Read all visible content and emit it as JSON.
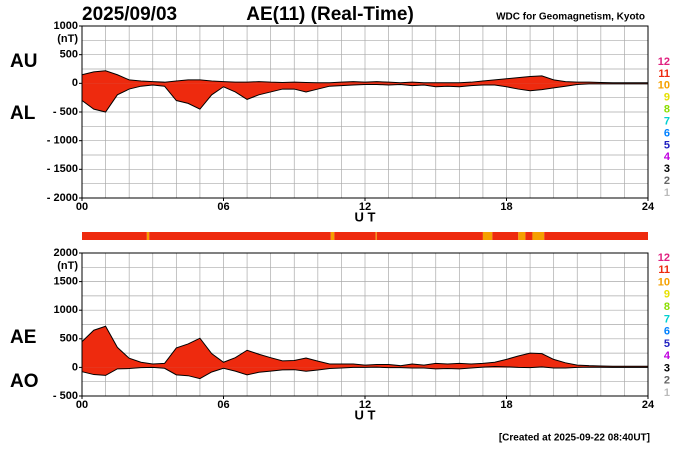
{
  "header": {
    "date": "2025/09/03",
    "title": "AE(11) (Real-Time)",
    "source": "WDC for Geomagnetism, Kyoto"
  },
  "footer": "[Created at 2025-09-22 08:40UT]",
  "station_legend": [
    {
      "label": "12",
      "color": "#e0207f"
    },
    {
      "label": "11",
      "color": "#ee2a0e"
    },
    {
      "label": "10",
      "color": "#f5a000"
    },
    {
      "label": "9",
      "color": "#e6e000"
    },
    {
      "label": "8",
      "color": "#8ade00"
    },
    {
      "label": "7",
      "color": "#00d0d0"
    },
    {
      "label": "6",
      "color": "#0080ff"
    },
    {
      "label": "5",
      "color": "#2020c0"
    },
    {
      "label": "4",
      "color": "#c000e0"
    },
    {
      "label": "3",
      "color": "#000000"
    },
    {
      "label": "2",
      "color": "#666666"
    },
    {
      "label": "1",
      "color": "#bbbbbb"
    }
  ],
  "station_bar": [
    {
      "start": 0,
      "end": 2.75,
      "count": 11
    },
    {
      "start": 2.75,
      "end": 2.85,
      "count": 10
    },
    {
      "start": 2.85,
      "end": 10.55,
      "count": 11
    },
    {
      "start": 10.55,
      "end": 10.7,
      "count": 10
    },
    {
      "start": 10.7,
      "end": 12.45,
      "count": 11
    },
    {
      "start": 12.45,
      "end": 12.5,
      "count": 10
    },
    {
      "start": 12.5,
      "end": 17,
      "count": 11
    },
    {
      "start": 17,
      "end": 17.4,
      "count": 10
    },
    {
      "start": 17.4,
      "end": 18.5,
      "count": 11
    },
    {
      "start": 18.5,
      "end": 18.8,
      "count": 10
    },
    {
      "start": 18.8,
      "end": 19.1,
      "count": 11
    },
    {
      "start": 19.1,
      "end": 19.6,
      "count": 10
    },
    {
      "start": 19.6,
      "end": 24,
      "count": 11
    }
  ],
  "chart_data": [
    {
      "type": "area",
      "unit": "(nT)",
      "xlabel": "U T",
      "x": [
        0,
        0.5,
        1,
        1.5,
        2,
        2.5,
        3,
        3.5,
        4,
        4.5,
        5,
        5.5,
        6,
        6.5,
        7,
        7.5,
        8,
        8.5,
        9,
        9.5,
        10,
        10.5,
        11,
        11.5,
        12,
        12.5,
        13,
        13.5,
        14,
        14.5,
        15,
        15.5,
        16,
        16.5,
        17,
        17.5,
        18,
        18.5,
        19,
        19.5,
        20,
        20.5,
        21,
        21.5,
        22,
        22.5,
        23,
        23.5,
        24
      ],
      "series": [
        {
          "name": "AU",
          "color": "#ee2a0e",
          "values": [
            150,
            200,
            220,
            150,
            60,
            40,
            30,
            20,
            40,
            60,
            60,
            40,
            30,
            20,
            20,
            30,
            20,
            15,
            20,
            15,
            10,
            10,
            20,
            30,
            20,
            30,
            20,
            10,
            20,
            10,
            10,
            10,
            10,
            20,
            40,
            60,
            80,
            100,
            120,
            130,
            60,
            30,
            20,
            20,
            15,
            10,
            10,
            10,
            10
          ]
        },
        {
          "name": "AL",
          "color": "#ee2a0e",
          "values": [
            -300,
            -450,
            -500,
            -200,
            -100,
            -50,
            -30,
            -50,
            -300,
            -350,
            -450,
            -200,
            -60,
            -150,
            -280,
            -200,
            -150,
            -100,
            -100,
            -150,
            -100,
            -50,
            -40,
            -30,
            -20,
            -20,
            -30,
            -20,
            -40,
            -30,
            -60,
            -50,
            -60,
            -40,
            -30,
            -30,
            -60,
            -100,
            -130,
            -110,
            -80,
            -50,
            -20,
            -10,
            -10,
            -10,
            -10,
            -10,
            -10
          ]
        }
      ],
      "xlim": [
        0,
        24
      ],
      "xticks": [
        {
          "value": 0,
          "label": "00"
        },
        {
          "value": 6,
          "label": "06"
        },
        12,
        18,
        24
      ],
      "ylim": [
        -2000,
        1000
      ],
      "yticks": [
        1000,
        500,
        0,
        {
          "value": -500,
          "label": "- 500"
        },
        {
          "value": -1000,
          "label": "- 1000"
        },
        {
          "value": -1500,
          "label": "- 1500"
        },
        {
          "value": -2000,
          "label": "- 2000"
        }
      ],
      "grid_x": [
        0,
        1,
        2,
        3,
        4,
        5,
        6,
        7,
        8,
        9,
        10,
        11,
        12,
        13,
        14,
        15,
        16,
        17,
        18,
        19,
        20,
        21,
        22,
        23,
        24
      ],
      "grid_y": [
        1000,
        750,
        500,
        250,
        0,
        -250,
        -500,
        -750,
        -1000,
        -1250,
        -1500,
        -1750,
        -2000
      ]
    },
    {
      "type": "area",
      "unit": "(nT)",
      "xlabel": "U T",
      "x": [
        0,
        0.5,
        1,
        1.5,
        2,
        2.5,
        3,
        3.5,
        4,
        4.5,
        5,
        5.5,
        6,
        6.5,
        7,
        7.5,
        8,
        8.5,
        9,
        9.5,
        10,
        10.5,
        11,
        11.5,
        12,
        12.5,
        13,
        13.5,
        14,
        14.5,
        15,
        15.5,
        16,
        16.5,
        17,
        17.5,
        18,
        18.5,
        19,
        19.5,
        20,
        20.5,
        21,
        21.5,
        22,
        22.5,
        23,
        23.5,
        24
      ],
      "series": [
        {
          "name": "AE",
          "color": "#ee2a0e",
          "values": [
            450,
            650,
            720,
            350,
            160,
            90,
            60,
            70,
            340,
            410,
            510,
            240,
            90,
            170,
            300,
            230,
            170,
            115,
            120,
            165,
            110,
            60,
            60,
            60,
            40,
            50,
            50,
            30,
            60,
            40,
            70,
            60,
            70,
            60,
            70,
            90,
            140,
            200,
            250,
            240,
            140,
            80,
            40,
            30,
            25,
            20,
            20,
            20,
            20
          ]
        },
        {
          "name": "AO",
          "color": "#ee2a0e",
          "values": [
            -75,
            -125,
            -140,
            -25,
            -20,
            -5,
            0,
            -15,
            -130,
            -145,
            -195,
            -80,
            -15,
            -65,
            -130,
            -85,
            -65,
            -42.5,
            -40,
            -67.5,
            -45,
            -20,
            -10,
            0,
            0,
            5,
            -5,
            -5,
            -10,
            -10,
            -25,
            -20,
            -25,
            -10,
            5,
            15,
            10,
            0,
            -5,
            10,
            -10,
            -10,
            0,
            5,
            2.5,
            0,
            0,
            0,
            0
          ]
        }
      ],
      "xlim": [
        0,
        24
      ],
      "xticks": [
        {
          "value": 0,
          "label": "00"
        },
        {
          "value": 6,
          "label": "06"
        },
        12,
        18,
        24
      ],
      "ylim": [
        -500,
        2000
      ],
      "yticks": [
        2000,
        1500,
        1000,
        500,
        0,
        {
          "value": -500,
          "label": "- 500"
        }
      ],
      "grid_x": [
        0,
        1,
        2,
        3,
        4,
        5,
        6,
        7,
        8,
        9,
        10,
        11,
        12,
        13,
        14,
        15,
        16,
        17,
        18,
        19,
        20,
        21,
        22,
        23,
        24
      ],
      "grid_y": [
        2000,
        1750,
        1500,
        1250,
        1000,
        750,
        500,
        250,
        0,
        -250,
        -500
      ]
    }
  ]
}
